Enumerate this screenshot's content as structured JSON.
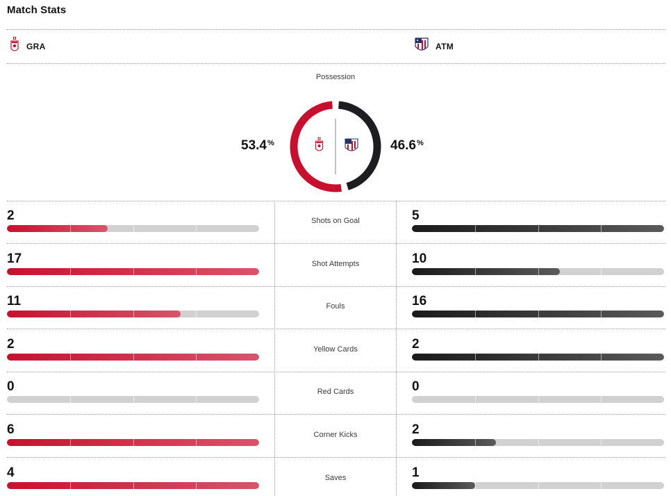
{
  "header": {
    "title": "Match Stats"
  },
  "teams": {
    "home": {
      "abbr": "GRA",
      "color": "#c8102e",
      "logo": "granada-crest-icon"
    },
    "away": {
      "abbr": "ATM",
      "color": "#1d1d1f",
      "logo": "atletico-crest-icon"
    }
  },
  "possession": {
    "label": "Possession",
    "home_value": "53.4",
    "away_value": "46.6",
    "unit": "%",
    "home_fraction": 0.534
  },
  "stats": [
    {
      "label": "Shots on Goal",
      "home": "2",
      "away": "5",
      "home_fill": 0.4,
      "away_fill": 1.0
    },
    {
      "label": "Shot Attempts",
      "home": "17",
      "away": "10",
      "home_fill": 1.0,
      "away_fill": 0.588
    },
    {
      "label": "Fouls",
      "home": "11",
      "away": "16",
      "home_fill": 0.6875,
      "away_fill": 1.0
    },
    {
      "label": "Yellow Cards",
      "home": "2",
      "away": "2",
      "home_fill": 1.0,
      "away_fill": 1.0
    },
    {
      "label": "Red Cards",
      "home": "0",
      "away": "0",
      "home_fill": 0.0,
      "away_fill": 0.0
    },
    {
      "label": "Corner Kicks",
      "home": "6",
      "away": "2",
      "home_fill": 1.0,
      "away_fill": 0.333
    },
    {
      "label": "Saves",
      "home": "4",
      "away": "1",
      "home_fill": 1.0,
      "away_fill": 0.25
    }
  ]
}
